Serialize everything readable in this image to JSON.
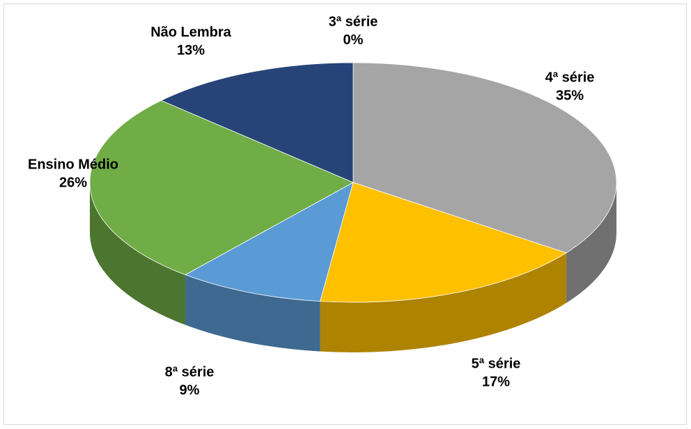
{
  "chart_data": {
    "type": "pie",
    "categories": [
      "3ª série",
      "4ª série",
      "5ª série",
      "8ª série",
      "Ensino Médio",
      "Não Lembra"
    ],
    "values": [
      0,
      35,
      17,
      9,
      26,
      13
    ],
    "value_labels": [
      "0%",
      "35%",
      "17%",
      "9%",
      "26%",
      "13%"
    ],
    "colors": [
      "#ed7d31",
      "#a5a5a5",
      "#ffc000",
      "#5b9bd5",
      "#70ad47",
      "#264478"
    ]
  }
}
